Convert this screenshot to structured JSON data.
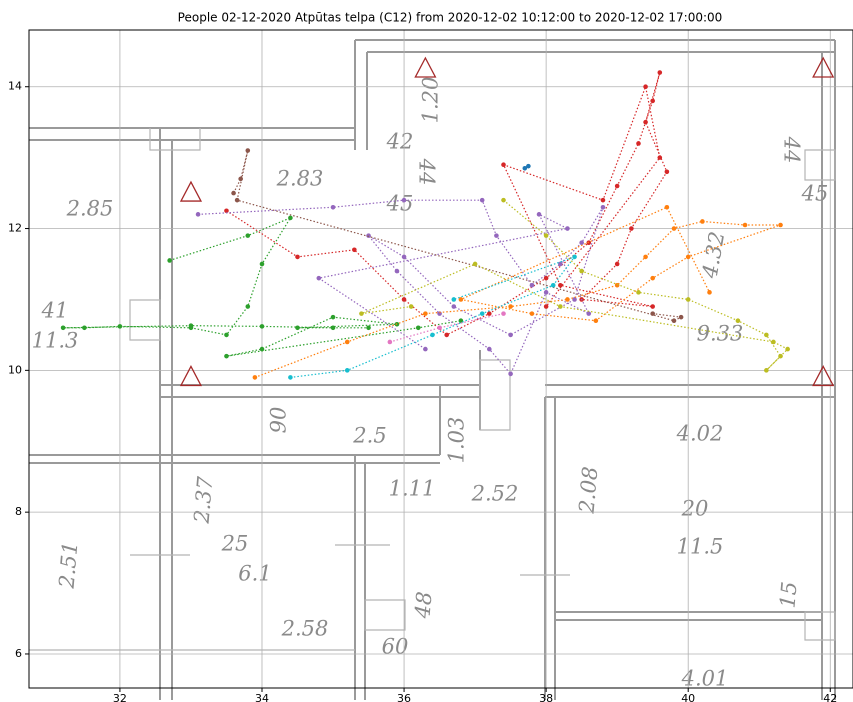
{
  "chart_data": {
    "type": "scatter",
    "title": "People 02-12-2020 Atpūtas telpa (C12) from 2020-12-02 10:12:00 to 2020-12-02 17:00:00",
    "xlim": [
      30.72,
      42.32
    ],
    "ylim": [
      5.52,
      14.8
    ],
    "xticks": [
      32,
      34,
      36,
      38,
      40,
      42
    ],
    "yticks": [
      6,
      8,
      10,
      12,
      14
    ],
    "grid": true,
    "floor_labels": [
      "2.85",
      "41",
      "11.3",
      "2.83",
      "42",
      "44",
      "45",
      "1.20",
      "44",
      "45",
      "4.32",
      "9.33",
      "4.02",
      "20",
      "11.5",
      "2.52",
      "2.08",
      "2.37",
      "2.51",
      "25",
      "6.1",
      "2.58",
      "48",
      "60",
      "15",
      "4.01",
      "1.03",
      "2.5",
      "90",
      "1.11"
    ],
    "series": [
      {
        "color": "#2ca02c",
        "connect": true,
        "x": [
          32.7,
          33.8,
          34.4,
          34.0,
          33.8,
          33.5,
          33.0,
          32.0,
          31.5,
          31.2,
          33.0,
          34.0,
          35.0,
          35.5,
          34.5,
          35.9,
          35.0,
          34.0,
          33.5,
          36.2,
          36.8
        ],
        "values": [
          11.55,
          11.9,
          12.15,
          11.5,
          10.9,
          10.5,
          10.6,
          10.62,
          10.6,
          10.6,
          10.63,
          10.62,
          10.6,
          10.6,
          10.6,
          10.65,
          10.75,
          10.3,
          10.2,
          10.6,
          10.7
        ]
      },
      {
        "color": "#d62728",
        "connect": true,
        "x": [
          33.5,
          34.5,
          35.3,
          36.0,
          36.6,
          37.2,
          38.0,
          38.6,
          39.0,
          39.3,
          39.5,
          39.6,
          39.4,
          39.7,
          39.2,
          39.0,
          38.5,
          39.5,
          38.2,
          37.4,
          38.8,
          39.4,
          39.6,
          38.0
        ],
        "values": [
          12.25,
          11.6,
          11.7,
          11.0,
          10.5,
          10.8,
          11.3,
          11.8,
          12.6,
          13.2,
          13.8,
          14.2,
          13.5,
          12.8,
          12.0,
          11.5,
          11.0,
          10.9,
          11.2,
          12.9,
          12.4,
          14.0,
          13.0,
          10.9
        ]
      },
      {
        "color": "#9467bd",
        "connect": true,
        "x": [
          33.1,
          35.0,
          36.0,
          37.1,
          37.3,
          37.8,
          38.2,
          38.5,
          38.8,
          38.4,
          37.5,
          36.7,
          36.0,
          35.5,
          35.9,
          36.5,
          37.2,
          37.5,
          38.0,
          38.6,
          37.9,
          38.3,
          34.8,
          36.3
        ],
        "values": [
          12.2,
          12.3,
          12.4,
          12.4,
          11.9,
          11.2,
          11.5,
          11.8,
          12.3,
          11.0,
          10.5,
          10.9,
          11.6,
          11.9,
          11.4,
          10.8,
          10.3,
          9.95,
          11.1,
          10.8,
          12.2,
          12.0,
          11.3,
          10.3
        ]
      },
      {
        "color": "#ff7f0e",
        "connect": true,
        "x": [
          33.9,
          35.2,
          36.3,
          37.5,
          38.3,
          39.0,
          39.4,
          39.8,
          40.2,
          40.8,
          41.3,
          40.0,
          39.5,
          38.7,
          37.8,
          36.8,
          39.7,
          40.3
        ],
        "values": [
          9.9,
          10.4,
          10.8,
          10.9,
          11.0,
          11.2,
          11.6,
          12.0,
          12.1,
          12.05,
          12.05,
          11.6,
          11.3,
          10.7,
          10.8,
          11.0,
          12.3,
          11.1
        ]
      },
      {
        "color": "#8c564b",
        "connect": true,
        "x": [
          33.6,
          33.7,
          33.8,
          33.65,
          39.8,
          39.9,
          39.5
        ],
        "values": [
          12.5,
          12.7,
          13.1,
          12.4,
          10.7,
          10.75,
          10.8
        ]
      },
      {
        "color": "#bcbd22",
        "connect": true,
        "x": [
          37.4,
          38.0,
          38.5,
          39.3,
          40.0,
          40.7,
          41.1,
          41.3,
          41.1,
          41.4,
          41.2,
          38.2,
          37.0,
          35.4,
          36.1
        ],
        "values": [
          12.4,
          11.9,
          11.4,
          11.1,
          11.0,
          10.7,
          10.5,
          10.2,
          10.0,
          10.3,
          10.4,
          10.9,
          11.5,
          10.8,
          10.9
        ]
      },
      {
        "color": "#17becf",
        "connect": true,
        "x": [
          34.4,
          35.2,
          36.4,
          37.1,
          38.1,
          38.4,
          36.7
        ],
        "values": [
          9.9,
          10.0,
          10.5,
          10.8,
          11.2,
          11.6,
          11.0
        ]
      },
      {
        "color": "#e377c2",
        "connect": true,
        "x": [
          35.8,
          36.5,
          37.4
        ],
        "values": [
          10.4,
          10.6,
          10.8
        ]
      },
      {
        "color": "#1f77b4",
        "connect": true,
        "x": [
          37.7,
          37.75
        ],
        "values": [
          12.85,
          12.88
        ]
      },
      {
        "color": "#a52a2a",
        "connect": false,
        "marker": "triangle",
        "x": [
          33.0,
          36.3,
          41.9,
          33.0,
          41.9
        ],
        "values": [
          12.5,
          14.25,
          14.25,
          9.9,
          9.9
        ]
      }
    ]
  }
}
